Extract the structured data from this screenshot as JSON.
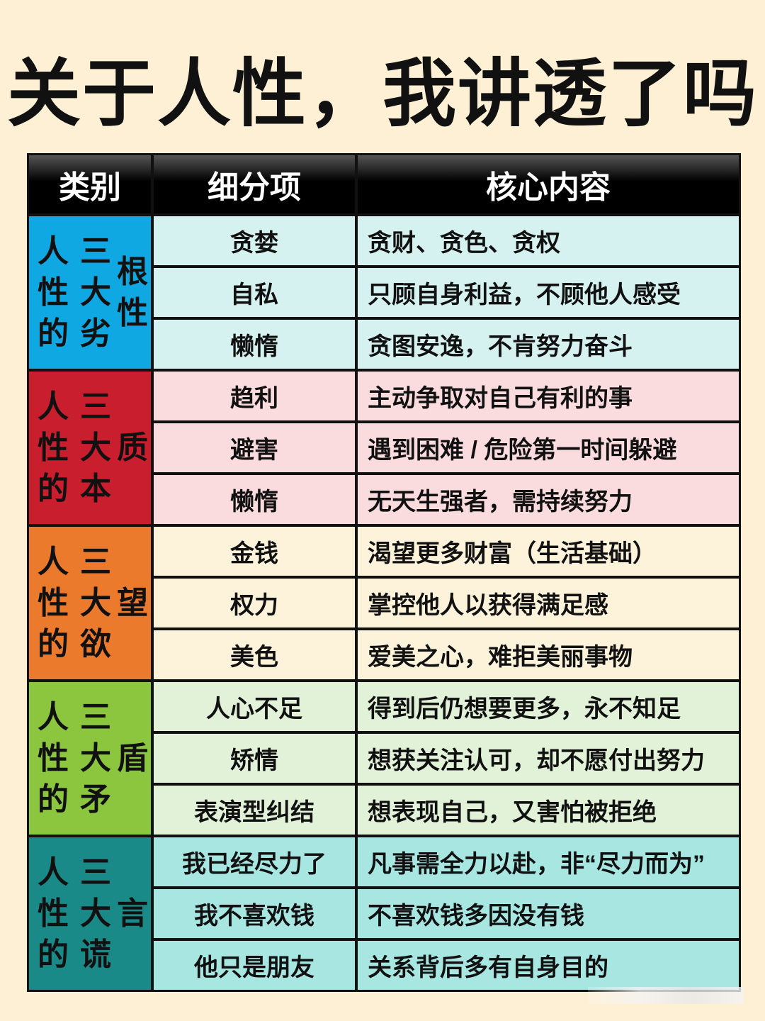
{
  "title": "关于人性，我讲透了吗",
  "headers": [
    "类别",
    "细分项",
    "核心内容"
  ],
  "colors": {
    "background": "#fdf0d4",
    "header": "#000000"
  },
  "groups": [
    {
      "category": "人性的三大劣根性",
      "color": "#10a8e2",
      "row_color": "#d6f2f0",
      "rows": [
        {
          "item": "贪婪",
          "content": "贪财、贪色、贪权"
        },
        {
          "item": "自私",
          "content": "只顾自身利益，不顾他人感受"
        },
        {
          "item": "懒惰",
          "content": "贪图安逸，不肯努力奋斗"
        }
      ]
    },
    {
      "category": "人性的三大本质",
      "color": "#c81e2e",
      "row_color": "#fadbde",
      "rows": [
        {
          "item": "趋利",
          "content": "主动争取对自己有利的事"
        },
        {
          "item": "避害",
          "content": "遇到困难 / 危险第一时间躲避"
        },
        {
          "item": "懒惰",
          "content": "无天生强者，需持续努力"
        }
      ]
    },
    {
      "category": "人性的三大欲望",
      "color": "#ec7a2c",
      "row_color": "#fdf3da",
      "rows": [
        {
          "item": "金钱",
          "content": "渴望更多财富（生活基础）"
        },
        {
          "item": "权力",
          "content": "掌控他人以获得满足感"
        },
        {
          "item": "美色",
          "content": "爱美之心，难拒美丽事物"
        }
      ]
    },
    {
      "category": "人性的三大矛盾",
      "color": "#8cc63f",
      "row_color": "#e2f2d8",
      "rows": [
        {
          "item": "人心不足",
          "content": "得到后仍想要更多，永不知足"
        },
        {
          "item": "矫情",
          "content": "想获关注认可，却不愿付出努力"
        },
        {
          "item": "表演型纠结",
          "content": "想表现自己，又害怕被拒绝"
        }
      ]
    },
    {
      "category": "人性的三大谎言",
      "color": "#1a8a88",
      "row_color": "#a8e6e2",
      "rows": [
        {
          "item": "我已经尽力了",
          "content": "凡事需全力以赴，非“尽力而为”"
        },
        {
          "item": "我不喜欢钱",
          "content": "不喜欢钱多因没有钱"
        },
        {
          "item": "他只是朋友",
          "content": "关系背后多有自身目的"
        }
      ]
    }
  ]
}
